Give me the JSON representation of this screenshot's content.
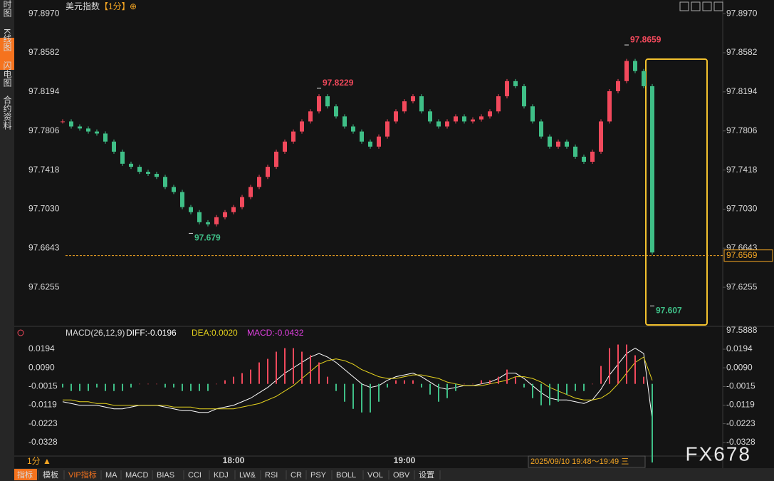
{
  "ui": {
    "sidebar": [
      "分时图",
      "K线图",
      "闪电图",
      "合约资料"
    ],
    "symbol": "美元指数",
    "period": "【1分】",
    "period_icon": "⊕",
    "period_button": "1分 ▲",
    "time_range": "2025/09/10 19:48～19:49 三",
    "watermark": "FX678",
    "toolbar": [
      "指标",
      "模板",
      "VIP指标",
      "MA",
      "MACD",
      "BIAS",
      "CCI",
      "KDJ",
      "LW&",
      "RSI",
      "CR",
      "PSY",
      "BOLL",
      "VOL",
      "OBV",
      "设置"
    ]
  },
  "chart_data": [
    {
      "type": "candlestick",
      "categories": [
        null,
        null,
        null,
        null,
        null,
        null,
        null,
        null,
        null,
        null,
        null,
        null,
        null,
        null,
        null,
        null,
        null,
        null,
        null,
        null,
        "18:00",
        null,
        null,
        null,
        null,
        null,
        null,
        null,
        null,
        null,
        null,
        null,
        null,
        null,
        null,
        null,
        null,
        null,
        null,
        null,
        "19:00",
        null,
        null,
        null,
        null,
        null,
        null,
        null,
        null,
        null,
        null,
        null,
        null,
        null,
        null,
        null,
        null,
        null,
        null,
        null,
        null,
        null,
        null,
        null,
        null,
        null,
        null,
        null,
        null,
        null
      ],
      "series": [
        {
          "name": "美元指数",
          "up_color": "#f2495c",
          "down_color": "#3fbf87",
          "values": [
            97.79,
            97.785,
            97.783,
            97.78,
            97.778,
            97.77,
            97.76,
            97.748,
            97.745,
            97.74,
            97.738,
            97.735,
            97.725,
            97.72,
            97.705,
            97.7,
            97.69,
            97.688,
            97.695,
            97.7,
            97.705,
            97.715,
            97.725,
            97.735,
            97.745,
            97.76,
            97.77,
            97.78,
            97.79,
            97.8,
            97.815,
            97.805,
            97.795,
            97.785,
            97.78,
            97.77,
            97.765,
            97.775,
            97.79,
            97.8,
            97.81,
            97.815,
            97.8,
            97.79,
            97.785,
            97.79,
            97.795,
            97.79,
            97.792,
            97.795,
            97.8,
            97.815,
            97.83,
            97.825,
            97.805,
            97.79,
            97.775,
            97.765,
            97.77,
            97.765,
            97.755,
            97.75,
            97.76,
            97.79,
            97.82,
            97.83,
            97.85,
            97.84,
            97.825,
            97.66
          ]
        }
      ],
      "annotations": [
        {
          "index": 66,
          "value": 97.8659,
          "color": "#f2495c"
        },
        {
          "index": 30,
          "value": 97.8229,
          "color": "#f2495c"
        },
        {
          "index": 15,
          "value": 97.679,
          "color": "#3fbf87"
        },
        {
          "index": 69,
          "value": 97.607,
          "color": "#3fbf87"
        }
      ],
      "last": 97.6569,
      "last_color": "#f5a623",
      "ylim": [
        97.5888,
        97.9105
      ],
      "yticks": [
        {
          "value": 97.897,
          "label": "97.8970"
        },
        97.8582,
        97.8194,
        97.7806,
        97.7418,
        {
          "value": 97.703,
          "label": "97.7030"
        },
        97.6643,
        97.6255
      ],
      "grid": false
    },
    {
      "type": "line",
      "title": "MACD(26,12,9)",
      "series": [
        {
          "name": "DIFF:-0.0196",
          "color": "#ffffff",
          "values": [
            -0.01,
            -0.011,
            -0.012,
            -0.012,
            -0.012,
            -0.013,
            -0.014,
            -0.014,
            -0.013,
            -0.012,
            -0.012,
            -0.012,
            -0.013,
            -0.014,
            -0.015,
            -0.015,
            -0.016,
            -0.016,
            -0.014,
            -0.013,
            -0.012,
            -0.01,
            -0.008,
            -0.005,
            -0.002,
            0.002,
            0.006,
            0.009,
            0.012,
            0.015,
            0.017,
            0.015,
            0.012,
            0.008,
            0.004,
            0.0,
            -0.002,
            -0.001,
            0.002,
            0.004,
            0.005,
            0.006,
            0.004,
            0.001,
            -0.002,
            -0.003,
            -0.002,
            -0.001,
            -0.001,
            0.0,
            0.001,
            0.003,
            0.006,
            0.006,
            0.003,
            -0.001,
            -0.005,
            -0.008,
            -0.009,
            -0.009,
            -0.01,
            -0.011,
            -0.009,
            -0.003,
            0.005,
            0.011,
            0.017,
            0.02,
            0.017,
            -0.02
          ]
        },
        {
          "name": "DEA:0.0020",
          "color": "#e6d31e",
          "values": [
            -0.009,
            -0.009,
            -0.01,
            -0.01,
            -0.011,
            -0.011,
            -0.012,
            -0.012,
            -0.012,
            -0.012,
            -0.012,
            -0.012,
            -0.012,
            -0.013,
            -0.013,
            -0.013,
            -0.014,
            -0.014,
            -0.014,
            -0.014,
            -0.014,
            -0.013,
            -0.012,
            -0.011,
            -0.009,
            -0.007,
            -0.004,
            -0.001,
            0.003,
            0.007,
            0.011,
            0.013,
            0.014,
            0.013,
            0.011,
            0.008,
            0.006,
            0.004,
            0.003,
            0.003,
            0.004,
            0.005,
            0.005,
            0.004,
            0.003,
            0.001,
            0.0,
            -0.001,
            -0.001,
            -0.001,
            0.0,
            0.001,
            0.002,
            0.004,
            0.004,
            0.003,
            0.001,
            -0.002,
            -0.004,
            -0.006,
            -0.008,
            -0.009,
            -0.009,
            -0.008,
            -0.005,
            0.0,
            0.006,
            0.012,
            0.015,
            0.002
          ]
        },
        {
          "name": "MACD:-0.0432",
          "color": "#e040e0",
          "type": "bar",
          "up_color": "#f2495c",
          "down_color": "#3fbf87",
          "values": [
            -0.002,
            -0.004,
            -0.004,
            -0.004,
            -0.002,
            -0.004,
            -0.004,
            -0.004,
            -0.002,
            0,
            0,
            0,
            -0.002,
            -0.002,
            -0.004,
            -0.004,
            -0.004,
            -0.004,
            0,
            0.002,
            0.004,
            0.006,
            0.008,
            0.012,
            0.014,
            0.018,
            0.02,
            0.02,
            0.018,
            0.016,
            0.012,
            0.004,
            -0.004,
            -0.01,
            -0.014,
            -0.016,
            -0.016,
            -0.01,
            -0.002,
            0.002,
            0.002,
            0.002,
            -0.002,
            -0.006,
            -0.01,
            -0.008,
            -0.004,
            0,
            0,
            0.002,
            0.002,
            0.004,
            0.008,
            0.004,
            -0.002,
            -0.008,
            -0.012,
            -0.012,
            -0.01,
            -0.006,
            -0.004,
            -0.004,
            0,
            0.01,
            0.02,
            0.022,
            0.022,
            0.016,
            0.004,
            -0.044
          ]
        }
      ],
      "ylim": [
        -0.0444,
        0.0254
      ],
      "yticks": [
        0.0194,
        {
          "value": 0.009,
          "label": "0.0090"
        },
        -0.0015,
        -0.0119,
        -0.0223,
        -0.0328
      ],
      "grid": false
    }
  ]
}
